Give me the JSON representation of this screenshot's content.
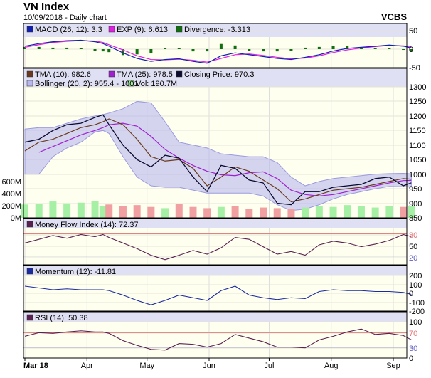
{
  "header": {
    "title": "VN Index",
    "subtitle": "10/09/2018 - Daily chart",
    "brand": "VCBS"
  },
  "colors": {
    "header_band": "#e0e0f4",
    "plot_bg": "#fffff0",
    "tma10": "#6b3a1e",
    "tma25": "#a020d0",
    "close": "#0a0a30",
    "bollinger": "#b8b8ee",
    "vol_up": "#a6f0a6",
    "vol_down": "#f0a0a0",
    "macd": "#1020b0",
    "exp": "#e020e0",
    "divergence": "#107010",
    "mfi": "#5a2050",
    "momentum": "#1a2aa0",
    "rsi": "#5a2050",
    "overbought": "#e07070",
    "oversold": "#6060c0"
  },
  "chart_data": [
    {
      "type": "line",
      "panel": "MACD",
      "legend": [
        {
          "label": "MACD (26, 12): 3.3",
          "color": "#1020b0"
        },
        {
          "label": "EXP (9): 6.613",
          "color": "#e020e0"
        },
        {
          "label": "Divergence: -3.313",
          "color": "#107010"
        }
      ],
      "yticks": [
        "50",
        "0",
        "-50"
      ],
      "ylim": [
        -50,
        50
      ]
    },
    {
      "type": "line",
      "panel": "Price",
      "legend": [
        {
          "label": "TMA (10): 982.6",
          "color": "#6b3a1e"
        },
        {
          "label": "TMA (25): 978.5",
          "color": "#a020d0"
        },
        {
          "label": "Closing Price: 970.3",
          "color": "#0a0a30"
        },
        {
          "label": "Bollinger (20, 2): 955.4 - 1001",
          "color": "#b8b8ee"
        },
        {
          "label": "Vol: 190.7M",
          "color": "#a6f0a6"
        }
      ],
      "yticks": [
        "1300",
        "1250",
        "1200",
        "1150",
        "1100",
        "1050",
        "1000",
        "950",
        "900",
        "850"
      ],
      "ylim": [
        850,
        1300
      ],
      "vol_ticks": [
        "600M",
        "400M",
        "200M",
        "0M"
      ],
      "vol_lim": [
        0,
        800
      ]
    },
    {
      "type": "line",
      "panel": "MFI",
      "legend": [
        {
          "label": "Money Flow Index (14): 72.37",
          "color": "#5a2050"
        }
      ],
      "yticks": [
        "80",
        "50",
        "20"
      ],
      "ylim": [
        0,
        100
      ]
    },
    {
      "type": "line",
      "panel": "Momentum",
      "legend": [
        {
          "label": "Momentum (12): -11.81",
          "color": "#1a2aa0"
        }
      ],
      "yticks": [
        "200",
        "100",
        "0",
        "-100",
        "-200"
      ],
      "ylim": [
        -200,
        200
      ]
    },
    {
      "type": "line",
      "panel": "RSI",
      "legend": [
        {
          "label": "RSI (14): 50.38",
          "color": "#5a2050"
        }
      ],
      "yticks": [
        "100",
        "70",
        "30",
        "0"
      ],
      "ylim": [
        0,
        100
      ]
    }
  ],
  "series": {
    "dates": [
      "2018-03-01",
      "2018-03-08",
      "2018-03-15",
      "2018-03-22",
      "2018-03-29",
      "2018-04-05",
      "2018-04-09",
      "2018-04-12",
      "2018-04-19",
      "2018-04-26",
      "2018-05-03",
      "2018-05-10",
      "2018-05-17",
      "2018-05-24",
      "2018-05-31",
      "2018-06-07",
      "2018-06-14",
      "2018-06-21",
      "2018-06-28",
      "2018-07-05",
      "2018-07-12",
      "2018-07-19",
      "2018-07-26",
      "2018-08-02",
      "2018-08-09",
      "2018-08-16",
      "2018-08-23",
      "2018-08-30",
      "2018-09-06",
      "2018-09-10"
    ],
    "close": [
      1110,
      1120,
      1150,
      1170,
      1175,
      1195,
      1204,
      1170,
      1100,
      1050,
      1025,
      1065,
      1055,
      990,
      940,
      1030,
      1020,
      980,
      970,
      900,
      895,
      940,
      940,
      955,
      960,
      965,
      985,
      990,
      960,
      970.3
    ],
    "tma10": [
      1080,
      1110,
      1120,
      1140,
      1160,
      1170,
      1180,
      1190,
      1170,
      1120,
      1060,
      1045,
      1050,
      1020,
      960,
      990,
      1025,
      1010,
      980,
      950,
      905,
      915,
      930,
      945,
      950,
      955,
      965,
      975,
      985,
      982.6
    ],
    "tma25": [
      null,
      1075,
      1095,
      1115,
      1135,
      1150,
      1160,
      1170,
      1175,
      1165,
      1130,
      1085,
      1055,
      1030,
      1010,
      998,
      995,
      1005,
      1008,
      985,
      945,
      930,
      925,
      930,
      940,
      950,
      960,
      970,
      978,
      978.5
    ],
    "boll_upper": [
      1155,
      1160,
      1160,
      1175,
      1190,
      1200,
      1205,
      1210,
      1225,
      1250,
      1245,
      1180,
      1110,
      1100,
      1090,
      1070,
      1065,
      1060,
      1060,
      1040,
      990,
      960,
      975,
      985,
      990,
      995,
      1000,
      1002,
      1003,
      1001
    ],
    "boll_lower": [
      1000,
      1000,
      1060,
      1090,
      1110,
      1145,
      1150,
      1140,
      1060,
      990,
      960,
      955,
      955,
      945,
      935,
      935,
      935,
      935,
      925,
      895,
      875,
      880,
      895,
      915,
      930,
      940,
      950,
      958,
      957,
      955.4
    ],
    "volume_m": [
      220,
      230,
      270,
      240,
      250,
      280,
      200,
      220,
      190,
      210,
      180,
      160,
      230,
      180,
      160,
      180,
      200,
      150,
      170,
      160,
      150,
      170,
      200,
      180,
      210,
      200,
      170,
      190,
      180,
      190.7
    ],
    "macd": [
      8,
      15,
      20,
      23,
      24,
      20,
      15,
      8,
      -10,
      -25,
      -33,
      -28,
      -26,
      -33,
      -38,
      -18,
      -10,
      -15,
      -20,
      -25,
      -28,
      -22,
      -15,
      -5,
      2,
      5,
      8,
      11,
      8,
      3.3
    ],
    "exp": [
      5,
      12,
      18,
      21,
      23,
      22,
      18,
      12,
      -2,
      -18,
      -28,
      -29,
      -27,
      -30,
      -35,
      -25,
      -15,
      -13,
      -17,
      -22,
      -26,
      -24,
      -18,
      -9,
      -2,
      3,
      7,
      10,
      9,
      6.613
    ],
    "mfi": [
      55,
      65,
      75,
      68,
      78,
      72,
      78,
      70,
      55,
      40,
      22,
      10,
      22,
      35,
      25,
      42,
      70,
      65,
      45,
      25,
      32,
      22,
      50,
      60,
      55,
      45,
      52,
      62,
      78,
      72.37
    ],
    "momentum": [
      80,
      60,
      40,
      50,
      40,
      40,
      40,
      30,
      -20,
      -80,
      -130,
      -80,
      -20,
      -50,
      -80,
      30,
      80,
      -20,
      -50,
      -70,
      -50,
      -60,
      20,
      40,
      30,
      30,
      20,
      20,
      10,
      -11.81
    ],
    "rsi": [
      60,
      70,
      68,
      72,
      75,
      72,
      72,
      68,
      48,
      35,
      24,
      22,
      40,
      38,
      30,
      40,
      65,
      55,
      45,
      30,
      30,
      28,
      50,
      60,
      72,
      80,
      65,
      68,
      62,
      50.38
    ]
  },
  "x_axis": {
    "ticks": [
      {
        "label": "Mar 18",
        "date": "2018-03-01"
      },
      {
        "label": "Apr",
        "date": "2018-04-01"
      },
      {
        "label": "May",
        "date": "2018-05-01"
      },
      {
        "label": "Jun",
        "date": "2018-06-01"
      },
      {
        "label": "Jul",
        "date": "2018-07-01"
      },
      {
        "label": "Aug",
        "date": "2018-08-01"
      },
      {
        "label": "Sep",
        "date": "2018-09-01"
      }
    ]
  }
}
